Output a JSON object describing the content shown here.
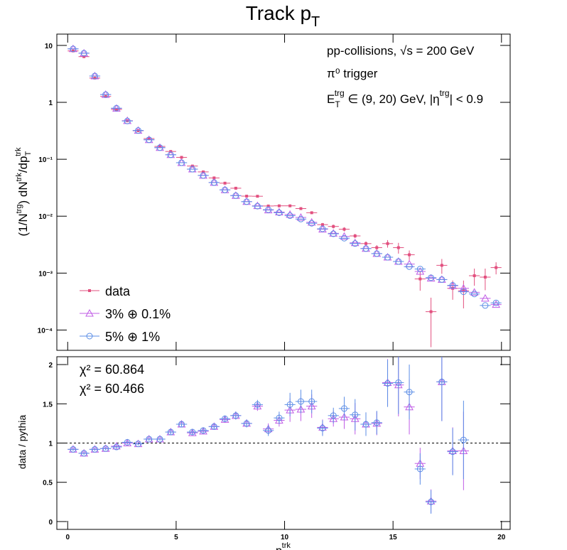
{
  "chart_data": [
    {
      "type": "errorbar",
      "title": [
        "Track p",
        "T"
      ],
      "y_label": [
        "(1/N",
        "trg",
        ") dN",
        "trk",
        "/dp",
        "T",
        "trk"
      ],
      "annotations": [
        [
          "pp-collisions, √s = 200 GeV"
        ],
        [
          "π⁰ trigger"
        ],
        [
          "E",
          "T",
          "trg",
          " ∈ (9, 20) GeV, |η",
          "trg",
          "| < 0.9"
        ]
      ],
      "log_y": true,
      "xlim": [
        -0.5,
        20.4
      ],
      "xticks": [
        0,
        5,
        10,
        15,
        20
      ],
      "show_xtick_labels": false,
      "ylim": [
        4.4e-05,
        15.8
      ],
      "yticks": [
        {
          "value": 10,
          "label": "10"
        },
        {
          "value": 1,
          "label": "1"
        },
        {
          "value": 0.1,
          "label": "10⁻¹"
        },
        {
          "value": 0.01,
          "label": "10⁻²"
        },
        {
          "value": 0.001,
          "label": "10⁻³"
        },
        {
          "value": 0.0001,
          "label": "10⁻⁴"
        }
      ],
      "legend": "lower left",
      "x": [
        0.25,
        0.75,
        1.25,
        1.75,
        2.25,
        2.75,
        3.25,
        3.75,
        4.25,
        4.75,
        5.25,
        5.75,
        6.25,
        6.75,
        7.25,
        7.75,
        8.25,
        8.75,
        9.25,
        9.75,
        10.25,
        10.75,
        11.25,
        11.75,
        12.25,
        12.75,
        13.25,
        13.75,
        14.25,
        14.75,
        15.25,
        15.75,
        16.25,
        16.75,
        17.25,
        17.75,
        18.25,
        18.75,
        19.25,
        19.75
      ],
      "series": [
        {
          "name": "data",
          "color": "#e2507f",
          "marker": "square",
          "values": [
            8.0,
            6.35,
            2.67,
            1.27,
            0.75,
            0.475,
            0.317,
            0.231,
            0.168,
            0.137,
            0.108,
            0.076,
            0.06,
            0.047,
            0.038,
            0.031,
            0.0225,
            0.0224,
            0.0151,
            0.0152,
            0.0152,
            0.0136,
            0.0115,
            0.0071,
            0.0066,
            0.0059,
            0.0045,
            0.0033,
            0.0028,
            0.0033,
            0.0028,
            0.0021,
            0.00079,
            0.00021,
            0.00137,
            0.00054,
            0.00049,
            0.0009,
            0.00085,
            0.00125
          ],
          "errors": [
            0.1,
            0.08,
            0.03,
            0.015,
            0.008,
            0.005,
            0.004,
            0.003,
            0.003,
            0.003,
            0.002,
            0.002,
            0.0015,
            0.0015,
            0.0012,
            0.001,
            0.0009,
            0.0009,
            0.0007,
            0.0007,
            0.0007,
            0.0007,
            0.0006,
            0.0005,
            0.0005,
            0.0005,
            0.0004,
            0.0003,
            0.0003,
            0.0005,
            0.0006,
            0.0004,
            0.0003,
            0.00016,
            0.0004,
            0.0002,
            0.00025,
            0.0003,
            0.00035,
            0.0003
          ]
        },
        {
          "name": "3% ⊕ 0.1%",
          "color": "#c05ce6",
          "marker": "triangle",
          "values": [
            8.7,
            7.3,
            2.9,
            1.37,
            0.78,
            0.475,
            0.32,
            0.22,
            0.16,
            0.12,
            0.087,
            0.067,
            0.052,
            0.039,
            0.029,
            0.023,
            0.018,
            0.0152,
            0.0128,
            0.0118,
            0.0107,
            0.0095,
            0.0078,
            0.0059,
            0.005,
            0.0044,
            0.0034,
            0.0027,
            0.0022,
            0.0019,
            0.0016,
            0.00144,
            0.00107,
            0.00081,
            0.00077,
            0.0006,
            0.00054,
            0.00046,
            0.00036,
            0.00028
          ]
        },
        {
          "name": "5% ⊕ 1%",
          "color": "#5b8ee6",
          "marker": "circle",
          "values": [
            8.7,
            7.3,
            2.9,
            1.37,
            0.79,
            0.47,
            0.32,
            0.22,
            0.16,
            0.12,
            0.087,
            0.067,
            0.052,
            0.039,
            0.029,
            0.023,
            0.018,
            0.015,
            0.013,
            0.0115,
            0.0102,
            0.0089,
            0.0075,
            0.006,
            0.0049,
            0.0041,
            0.0033,
            0.0027,
            0.0022,
            0.0019,
            0.0016,
            0.0013,
            0.00118,
            0.00083,
            0.00077,
            0.00061,
            0.00047,
            0.00043,
            0.00027,
            0.0003
          ]
        }
      ]
    },
    {
      "type": "errorbar",
      "y_label": [
        "data / pythia"
      ],
      "x_label": [
        "p",
        "T",
        "trk"
      ],
      "annotations": [
        {
          "text": "χ² = 60.864",
          "color": "#c866f0"
        },
        {
          "text": "χ² = 60.466",
          "color": "#6a9ae8"
        }
      ],
      "log_y": false,
      "xlim": [
        -0.5,
        20.4
      ],
      "xticks": [
        0,
        5,
        10,
        15,
        20
      ],
      "show_xtick_labels": true,
      "ylim": [
        -0.1,
        2.1
      ],
      "yticks": [
        0,
        0.5,
        1,
        1.5,
        2
      ],
      "reference_line": 1,
      "x": [
        0.25,
        0.75,
        1.25,
        1.75,
        2.25,
        2.75,
        3.25,
        3.75,
        4.25,
        4.75,
        5.25,
        5.75,
        6.25,
        6.75,
        7.25,
        7.75,
        8.25,
        8.75,
        9.25,
        9.75,
        10.25,
        10.75,
        11.25,
        11.75,
        12.25,
        12.75,
        13.25,
        13.75,
        14.25,
        14.75,
        15.25,
        15.75,
        16.25,
        16.75,
        17.25,
        17.75,
        18.25,
        18.75,
        19.25,
        19.75
      ],
      "series": [
        {
          "name": "3% ⊕ 0.1%",
          "color": "#c05ce6",
          "marker": "triangle",
          "values": [
            0.92,
            0.87,
            0.92,
            0.93,
            0.96,
            1.0,
            0.99,
            1.05,
            1.05,
            1.14,
            1.24,
            1.13,
            1.15,
            1.21,
            1.3,
            1.35,
            1.25,
            1.47,
            1.18,
            1.29,
            1.42,
            1.43,
            1.47,
            1.2,
            1.31,
            1.33,
            1.31,
            1.24,
            1.25,
            1.77,
            1.74,
            1.46,
            0.74,
            0.26,
            1.78,
            0.9,
            0.9,
            null,
            null,
            null
          ],
          "errors": [
            0.02,
            0.02,
            0.02,
            0.02,
            0.02,
            0.02,
            0.02,
            0.02,
            0.02,
            0.03,
            0.03,
            0.03,
            0.03,
            0.04,
            0.04,
            0.05,
            0.05,
            0.06,
            0.07,
            0.08,
            0.15,
            0.15,
            0.15,
            0.1,
            0.1,
            0.15,
            0.2,
            0.15,
            0.15,
            0.3,
            0.4,
            0.35,
            0.2,
            0.15,
            0.5,
            0.3,
            0.5,
            null,
            null,
            null
          ]
        },
        {
          "name": "5% ⊕ 1%",
          "color": "#5b8ee6",
          "marker": "circle",
          "values": [
            0.92,
            0.87,
            0.92,
            0.93,
            0.95,
            1.01,
            0.99,
            1.05,
            1.05,
            1.14,
            1.24,
            1.14,
            1.16,
            1.21,
            1.31,
            1.35,
            1.25,
            1.49,
            1.16,
            1.32,
            1.49,
            1.53,
            1.53,
            1.19,
            1.35,
            1.44,
            1.36,
            1.24,
            1.26,
            1.76,
            1.77,
            1.65,
            0.67,
            0.25,
            1.78,
            0.89,
            1.04,
            null,
            null,
            null
          ],
          "errors": [
            0.02,
            0.02,
            0.02,
            0.02,
            0.02,
            0.02,
            0.02,
            0.02,
            0.02,
            0.03,
            0.03,
            0.03,
            0.03,
            0.04,
            0.04,
            0.05,
            0.05,
            0.06,
            0.07,
            0.08,
            0.15,
            0.15,
            0.15,
            0.1,
            0.1,
            0.15,
            0.2,
            0.15,
            0.15,
            0.3,
            0.4,
            0.35,
            0.2,
            0.15,
            0.5,
            0.3,
            0.5,
            null,
            null,
            null
          ]
        }
      ]
    }
  ]
}
